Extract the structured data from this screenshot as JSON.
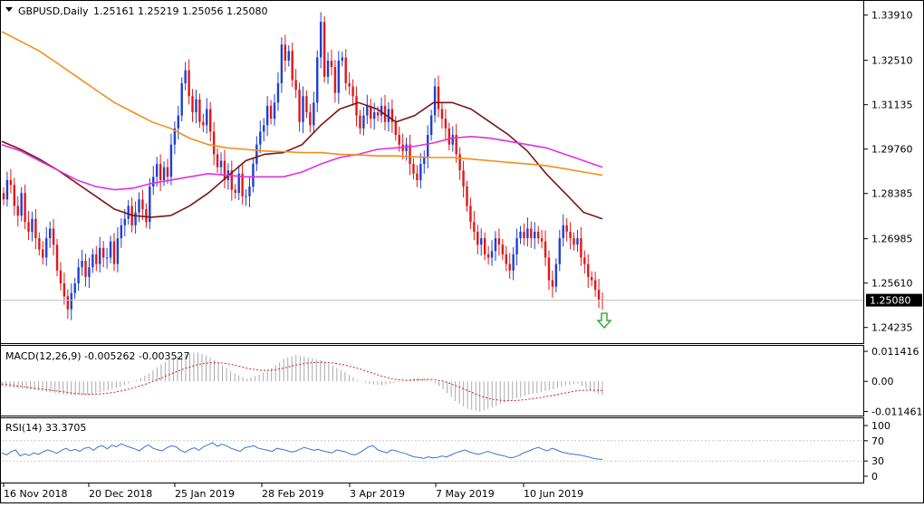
{
  "header": {
    "symbol": "GBPUSD,Daily",
    "ohlc": "1.25161 1.25219 1.25056 1.25080"
  },
  "colors": {
    "bull": "#1f3fd1",
    "bear": "#e01818",
    "ma_fast": "#7b1414",
    "ma_mid": "#e030e0",
    "ma_slow": "#f0901a",
    "macd_hist": "#a8a8a8",
    "macd_signal": "#d02020",
    "rsi": "#3b73d1",
    "current_box": "#000000",
    "arrow": "#1aa01a"
  },
  "chart_data": [
    {
      "type": "line",
      "panel": "price",
      "title": "GBPUSD,Daily",
      "y_ticks": [
        "1.33910",
        "1.32510",
        "1.31135",
        "1.29760",
        "1.28385",
        "1.26985",
        "1.25610",
        "1.24235"
      ],
      "ylim": [
        1.2375,
        1.3435
      ],
      "current_price": "1.25080",
      "x_labels": [
        "16 Nov 2018",
        "20 Dec 2018",
        "25 Jan 2019",
        "28 Feb 2019",
        "3 Apr 2019",
        "7 May 2019",
        "10 Jun 2019"
      ],
      "close_series": [
        1.282,
        1.288,
        1.2865,
        1.28,
        1.277,
        1.284,
        1.275,
        1.272,
        1.276,
        1.27,
        1.2665,
        1.264,
        1.27,
        1.273,
        1.268,
        1.26,
        1.256,
        1.252,
        1.248,
        1.253,
        1.256,
        1.261,
        1.263,
        1.258,
        1.261,
        1.265,
        1.262,
        1.267,
        1.264,
        1.264,
        1.269,
        1.262,
        1.27,
        1.274,
        1.276,
        1.28,
        1.274,
        1.278,
        1.282,
        1.279,
        1.275,
        1.286,
        1.289,
        1.293,
        1.288,
        1.292,
        1.289,
        1.299,
        1.304,
        1.308,
        1.318,
        1.322,
        1.314,
        1.309,
        1.313,
        1.306,
        1.305,
        1.31,
        1.303,
        1.296,
        1.292,
        1.294,
        1.288,
        1.291,
        1.285,
        1.284,
        1.29,
        1.283,
        1.283,
        1.286,
        1.293,
        1.299,
        1.303,
        1.305,
        1.311,
        1.307,
        1.312,
        1.318,
        1.33,
        1.325,
        1.328,
        1.319,
        1.316,
        1.306,
        1.314,
        1.309,
        1.305,
        1.312,
        1.326,
        1.337,
        1.32,
        1.325,
        1.323,
        1.315,
        1.325,
        1.326,
        1.318,
        1.317,
        1.314,
        1.308,
        1.304,
        1.308,
        1.311,
        1.307,
        1.309,
        1.308,
        1.311,
        1.306,
        1.31,
        1.306,
        1.302,
        1.299,
        1.297,
        1.299,
        1.293,
        1.29,
        1.288,
        1.293,
        1.295,
        1.302,
        1.308,
        1.317,
        1.31,
        1.307,
        1.304,
        1.299,
        1.302,
        1.296,
        1.291,
        1.286,
        1.28,
        1.275,
        1.272,
        1.268,
        1.27,
        1.265,
        1.264,
        1.266,
        1.27,
        1.268,
        1.265,
        1.262,
        1.26,
        1.265,
        1.27,
        1.272,
        1.27,
        1.273,
        1.27,
        1.272,
        1.27,
        1.269,
        1.264,
        1.257,
        1.255,
        1.262,
        1.27,
        1.274,
        1.272,
        1.27,
        1.268,
        1.27,
        1.264,
        1.262,
        1.258,
        1.257,
        1.254,
        1.251,
        1.2508
      ],
      "series": [
        {
          "values": [
            1.3,
            1.2975,
            1.2945,
            1.291,
            1.287,
            1.283,
            1.279,
            1.277,
            1.2765,
            1.277,
            1.28,
            1.284,
            1.289,
            1.294,
            1.296,
            1.2965,
            1.299,
            1.305,
            1.31,
            1.312,
            1.31,
            1.306,
            1.308,
            1.312,
            1.312,
            1.31,
            1.306,
            1.302,
            1.297,
            1.29,
            1.284,
            1.278,
            1.276
          ]
        },
        {
          "values": [
            1.299,
            1.297,
            1.294,
            1.291,
            1.288,
            1.286,
            1.285,
            1.2855,
            1.287,
            1.288,
            1.289,
            1.29,
            1.2895,
            1.289,
            1.289,
            1.289,
            1.2905,
            1.293,
            1.295,
            1.296,
            1.2975,
            1.298,
            1.2985,
            1.2995,
            1.301,
            1.3015,
            1.301,
            1.3,
            1.299,
            1.298,
            1.296,
            1.294,
            1.292
          ]
        },
        {
          "values": [
            1.334,
            1.331,
            1.328,
            1.324,
            1.32,
            1.316,
            1.312,
            1.309,
            1.306,
            1.304,
            1.301,
            1.299,
            1.298,
            1.2975,
            1.297,
            1.2968,
            1.2965,
            1.2965,
            1.296,
            1.2958,
            1.2955,
            1.2955,
            1.2952,
            1.295,
            1.295,
            1.2945,
            1.294,
            1.2935,
            1.293,
            1.2925,
            1.2915,
            1.2905,
            1.2895
          ]
        }
      ]
    },
    {
      "type": "bar",
      "panel": "macd",
      "title": "MACD(12,26,9) -0.005262 -0.003527",
      "y_ticks": [
        "0.011416",
        "0.00",
        "-0.011461"
      ],
      "ylim": [
        -0.013,
        0.0135
      ],
      "histogram": [
        -0.002,
        -0.0025,
        -0.003,
        -0.0035,
        -0.0042,
        -0.005,
        -0.0053,
        -0.005,
        -0.0042,
        -0.003,
        -0.0015,
        0.0005,
        0.003,
        0.0065,
        0.009,
        0.0105,
        0.011,
        0.009,
        0.006,
        0.003,
        0.001,
        0.0025,
        0.005,
        0.0085,
        0.01,
        0.009,
        0.008,
        0.006,
        0.0035,
        0.0005,
        -0.001,
        -0.0015,
        -0.0005,
        0.0005,
        0.0015,
        0.0005,
        -0.003,
        -0.0075,
        -0.0105,
        -0.0115,
        -0.01,
        -0.008,
        -0.0065,
        -0.005,
        -0.004,
        -0.003,
        -0.0015,
        -0.0008,
        -0.0035,
        -0.0052
      ],
      "signal": [
        -0.001,
        -0.0016,
        -0.0022,
        -0.0028,
        -0.0034,
        -0.004,
        -0.0046,
        -0.0049,
        -0.0048,
        -0.0043,
        -0.0034,
        -0.0022,
        -0.0006,
        0.0012,
        0.0032,
        0.005,
        0.0064,
        0.0071,
        0.007,
        0.0062,
        0.005,
        0.0042,
        0.0042,
        0.005,
        0.0062,
        0.007,
        0.0073,
        0.007,
        0.0062,
        0.005,
        0.0035,
        0.002,
        0.0008,
        0.0004,
        0.0006,
        0.0008,
        0.0001,
        -0.0015,
        -0.0035,
        -0.0055,
        -0.0068,
        -0.0074,
        -0.0073,
        -0.0068,
        -0.0061,
        -0.0053,
        -0.0044,
        -0.0035,
        -0.0033,
        -0.0035
      ]
    },
    {
      "type": "line",
      "panel": "rsi",
      "title": "RSI(14) 33.3705",
      "y_ticks": [
        "100",
        "70",
        "30",
        "0"
      ],
      "ylim": [
        0,
        100
      ],
      "levels": [
        70,
        30
      ],
      "values": [
        46,
        42,
        48,
        52,
        40,
        44,
        41,
        46,
        43,
        48,
        52,
        49,
        45,
        51,
        55,
        50,
        53,
        49,
        55,
        57,
        51,
        58,
        60,
        54,
        61,
        58,
        64,
        60,
        57,
        54,
        50,
        57,
        62,
        55,
        52,
        50,
        56,
        60,
        58,
        51,
        47,
        53,
        56,
        51,
        58,
        62,
        66,
        59,
        63,
        60,
        55,
        52,
        49,
        56,
        58,
        60,
        55,
        53,
        51,
        49,
        55,
        53,
        51,
        48,
        49,
        53,
        57,
        54,
        51,
        53,
        50,
        48,
        46,
        52,
        50,
        48,
        44,
        42,
        46,
        52,
        58,
        60,
        52,
        49,
        46,
        52,
        50,
        47,
        45,
        41,
        38,
        37,
        35,
        38,
        36,
        37,
        40,
        38,
        42,
        46,
        49,
        52,
        48,
        45,
        43,
        46,
        49,
        46,
        43,
        41,
        39,
        36,
        38,
        42,
        47,
        50,
        54,
        57,
        53,
        50,
        55,
        52,
        48,
        46,
        44,
        43,
        42,
        40,
        38,
        35,
        34,
        33
      ]
    }
  ]
}
